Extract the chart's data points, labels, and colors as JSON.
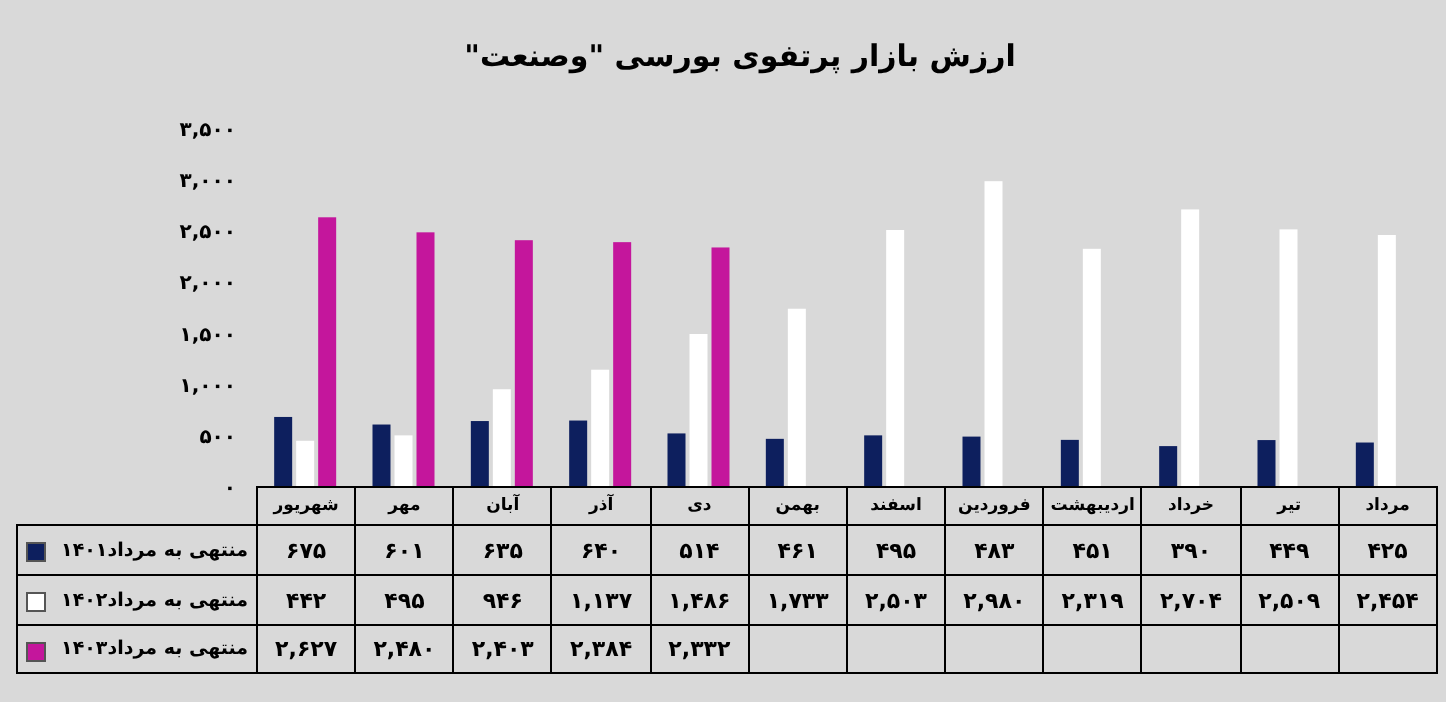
{
  "chart_data": {
    "type": "bar",
    "title": "ارزش بازار پرتفوی بورسی \"وصنعت\"",
    "categories": [
      "شهریور",
      "مهر",
      "آبان",
      "آذر",
      "دی",
      "بهمن",
      "اسفند",
      "فروردین",
      "اردیبهشت",
      "خرداد",
      "تیر",
      "مرداد"
    ],
    "series": [
      {
        "name": "منتهی به مرداد۱۴۰۱",
        "color": "#0d1f5e",
        "values": [
          675,
          601,
          635,
          640,
          514,
          461,
          495,
          483,
          451,
          390,
          449,
          425
        ],
        "value_labels": [
          "۶۷۵",
          "۶۰۱",
          "۶۳۵",
          "۶۴۰",
          "۵۱۴",
          "۴۶۱",
          "۴۹۵",
          "۴۸۳",
          "۴۵۱",
          "۳۹۰",
          "۴۴۹",
          "۴۲۵"
        ]
      },
      {
        "name": "منتهی به مرداد۱۴۰۲",
        "color": "#ffffff",
        "values": [
          442,
          495,
          946,
          1137,
          1486,
          1733,
          2503,
          2980,
          2319,
          2704,
          2509,
          2454
        ],
        "value_labels": [
          "۴۴۲",
          "۴۹۵",
          "۹۴۶",
          "۱,۱۳۷",
          "۱,۴۸۶",
          "۱,۷۳۳",
          "۲,۵۰۳",
          "۲,۹۸۰",
          "۲,۳۱۹",
          "۲,۷۰۴",
          "۲,۵۰۹",
          "۲,۴۵۴"
        ]
      },
      {
        "name": "منتهی به مرداد۱۴۰۳",
        "color": "#c4169c",
        "values": [
          2627,
          2480,
          2403,
          2384,
          2332,
          null,
          null,
          null,
          null,
          null,
          null,
          null
        ],
        "value_labels": [
          "۲,۶۲۷",
          "۲,۴۸۰",
          "۲,۴۰۳",
          "۲,۳۸۴",
          "۲,۳۳۲",
          null,
          null,
          null,
          null,
          null,
          null,
          null
        ]
      }
    ],
    "ylim": [
      0,
      3500
    ],
    "yticks": [
      {
        "value": 0,
        "label": "۰"
      },
      {
        "value": 500,
        "label": "۵۰۰"
      },
      {
        "value": 1000,
        "label": "۱,۰۰۰"
      },
      {
        "value": 1500,
        "label": "۱,۵۰۰"
      },
      {
        "value": 2000,
        "label": "۲,۰۰۰"
      },
      {
        "value": 2500,
        "label": "۲,۵۰۰"
      },
      {
        "value": 3000,
        "label": "۳,۰۰۰"
      },
      {
        "value": 3500,
        "label": "۳,۵۰۰"
      }
    ],
    "legend": "bottom left"
  }
}
